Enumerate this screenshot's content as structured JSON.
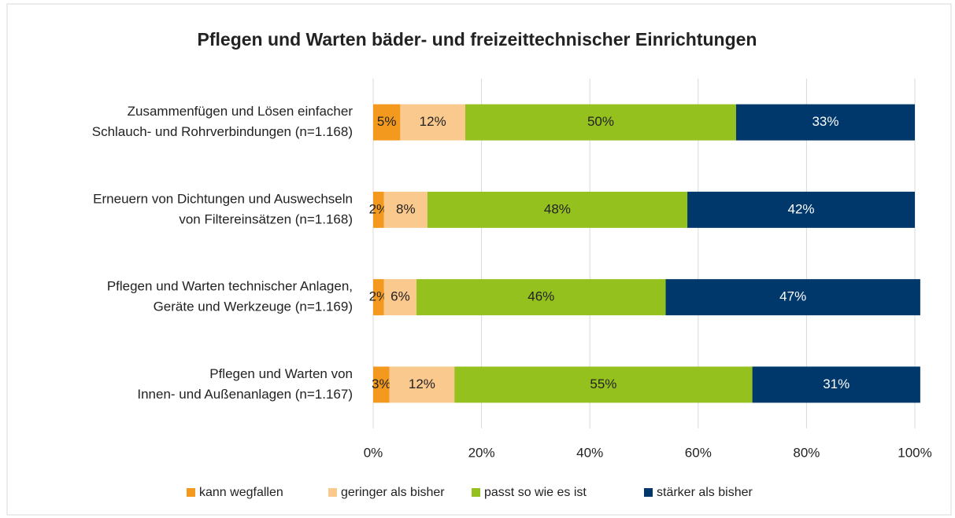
{
  "chart_data": {
    "type": "stacked-bar-horizontal",
    "title": "Pflegen und Warten bäder- und freizeittechnischer Einrichtungen",
    "categories": [
      [
        "Zusammenfügen und Lösen einfacher",
        "Schlauch- und Rohrverbindungen (n=1.168)"
      ],
      [
        "Erneuern von Dichtungen und Auswechseln",
        "von Filtereinsätzen (n=1.168)"
      ],
      [
        "Pflegen und Warten technischer Anlagen,",
        "Geräte und Werkzeuge  (n=1.169)"
      ],
      [
        "Pflegen und Warten von",
        "Innen- und Außenanlagen (n=1.167)"
      ]
    ],
    "series": [
      {
        "name": "kann wegfallen",
        "color": "#f39a1e",
        "label_color": "#222222",
        "values": [
          5,
          2,
          2,
          3
        ],
        "value_labels": [
          "5%",
          "2%",
          "2%",
          "3%"
        ]
      },
      {
        "name": "geringer als bisher",
        "color": "#fac98e",
        "label_color": "#222222",
        "values": [
          12,
          8,
          6,
          12
        ],
        "value_labels": [
          "12%",
          "8%",
          "6%",
          "12%"
        ]
      },
      {
        "name": "passt so wie es ist",
        "color": "#95c11f",
        "label_color": "#222222",
        "values": [
          50,
          48,
          46,
          55
        ],
        "value_labels": [
          "50%",
          "48%",
          "46%",
          "55%"
        ]
      },
      {
        "name": "stärker als bisher",
        "color": "#00386b",
        "label_color": "#ffffff",
        "values": [
          33,
          42,
          47,
          31
        ],
        "value_labels": [
          "33%",
          "42%",
          "47%",
          "31%"
        ]
      }
    ],
    "xlim": [
      0,
      100
    ],
    "xticks": [
      {
        "value": 0,
        "label": "0%"
      },
      {
        "value": 20,
        "label": "20%"
      },
      {
        "value": 40,
        "label": "40%"
      },
      {
        "value": 60,
        "label": "60%"
      },
      {
        "value": 80,
        "label": "80%"
      },
      {
        "value": 100,
        "label": "100%"
      }
    ],
    "grid": true,
    "legend": "bottom"
  }
}
